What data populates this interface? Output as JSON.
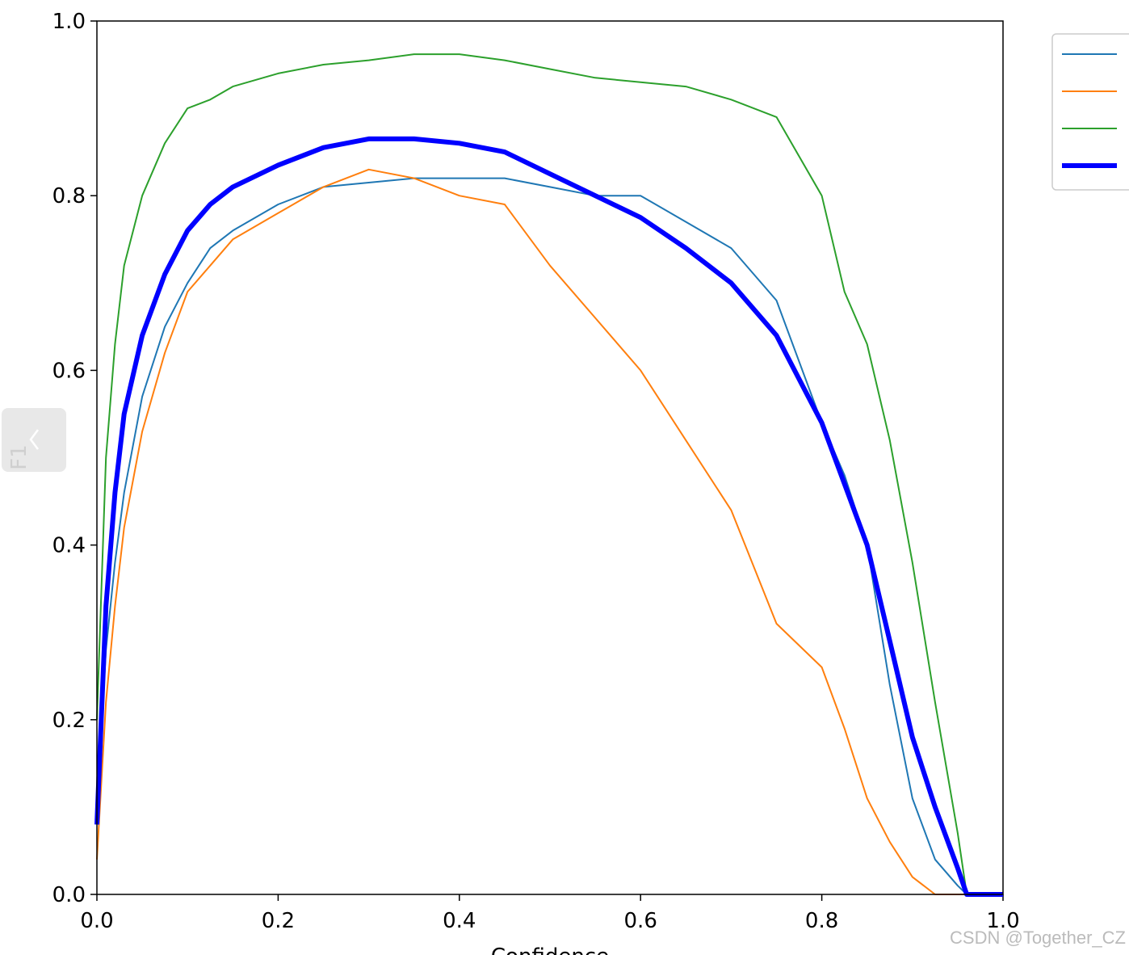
{
  "chart_data": {
    "type": "line",
    "xlabel": "Confidence",
    "ylabel": "F1",
    "x": [
      0,
      0.01,
      0.02,
      0.03,
      0.05,
      0.075,
      0.1,
      0.125,
      0.15,
      0.2,
      0.25,
      0.3,
      0.35,
      0.4,
      0.45,
      0.5,
      0.55,
      0.6,
      0.65,
      0.7,
      0.75,
      0.8,
      0.825,
      0.85,
      0.875,
      0.9,
      0.925,
      0.95,
      0.96,
      0.975,
      1.0
    ],
    "series": [
      {
        "color": "#1f77b4",
        "linewidth": 2,
        "values": [
          0.1,
          0.28,
          0.38,
          0.46,
          0.57,
          0.65,
          0.7,
          0.74,
          0.76,
          0.79,
          0.81,
          0.815,
          0.82,
          0.82,
          0.82,
          0.81,
          0.8,
          0.8,
          0.77,
          0.74,
          0.68,
          0.54,
          0.48,
          0.4,
          0.24,
          0.11,
          0.04,
          0.01,
          0,
          0,
          0
        ]
      },
      {
        "color": "#ff7f0e",
        "linewidth": 2,
        "values": [
          0.04,
          0.22,
          0.33,
          0.42,
          0.53,
          0.62,
          0.69,
          0.72,
          0.75,
          0.78,
          0.81,
          0.83,
          0.82,
          0.8,
          0.79,
          0.72,
          0.66,
          0.6,
          0.52,
          0.44,
          0.31,
          0.26,
          0.19,
          0.11,
          0.06,
          0.02,
          0,
          0,
          0,
          0,
          0
        ]
      },
      {
        "color": "#2ca02c",
        "linewidth": 2,
        "values": [
          0.2,
          0.5,
          0.63,
          0.72,
          0.8,
          0.86,
          0.9,
          0.91,
          0.925,
          0.94,
          0.95,
          0.955,
          0.962,
          0.962,
          0.955,
          0.945,
          0.935,
          0.93,
          0.925,
          0.91,
          0.89,
          0.8,
          0.69,
          0.63,
          0.52,
          0.38,
          0.22,
          0.07,
          0,
          0,
          0
        ]
      },
      {
        "color": "#0000ff",
        "linewidth": 6,
        "values": [
          0.08,
          0.33,
          0.46,
          0.55,
          0.64,
          0.71,
          0.76,
          0.79,
          0.81,
          0.835,
          0.855,
          0.865,
          0.865,
          0.86,
          0.85,
          0.825,
          0.8,
          0.775,
          0.74,
          0.7,
          0.64,
          0.54,
          0.47,
          0.4,
          0.29,
          0.18,
          0.1,
          0.03,
          0,
          0,
          0
        ]
      }
    ],
    "xlim": [
      0,
      1.0
    ],
    "ylim": [
      0,
      1.0
    ],
    "xticks": [
      {
        "value": 0,
        "label": "0.0"
      },
      0.2,
      0.4,
      0.6,
      0.8,
      {
        "value": 1,
        "label": "1.0"
      }
    ],
    "yticks": [
      {
        "value": 0,
        "label": "0.0"
      },
      0.2,
      0.4,
      0.6,
      0.8,
      {
        "value": 1,
        "label": "1.0"
      }
    ],
    "legend": "upper right outside",
    "watermark": "CSDN @Together_CZ"
  }
}
